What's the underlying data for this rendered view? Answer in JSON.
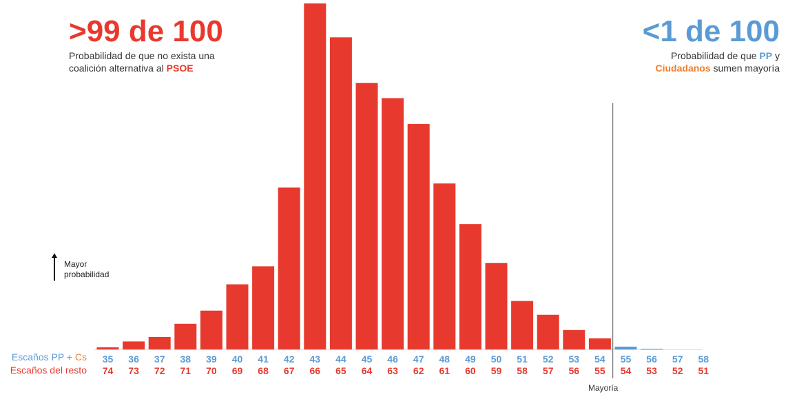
{
  "headline_left": {
    "value": ">99 de 100",
    "line1": "Probabilidad de que no exista una",
    "line2_prefix": "coalición alternativa al ",
    "line2_party": "PSOE"
  },
  "headline_right": {
    "value": "<1 de 100",
    "line1_prefix": "Probabilidad de que ",
    "line1_party": "PP",
    "line1_suffix": " y",
    "line2_party": "Ciudadanos",
    "line2_suffix": " sumen mayoría"
  },
  "row_labels": {
    "pp_prefix": "Escaños PP + ",
    "pp_suffix": "Cs",
    "rest": "Escaños del resto"
  },
  "probability_note": {
    "line1": "Mayor",
    "line2": "probabilidad"
  },
  "majority_label": "Mayoría",
  "colors": {
    "red": "#e8392e",
    "blue": "#5b9bd5",
    "orange": "#f07d2a"
  },
  "chart_data": {
    "type": "bar",
    "categories": [
      "35",
      "36",
      "37",
      "38",
      "39",
      "40",
      "41",
      "42",
      "43",
      "44",
      "45",
      "46",
      "47",
      "48",
      "49",
      "50",
      "51",
      "52",
      "53",
      "54",
      "55",
      "56",
      "57",
      "58"
    ],
    "secondary_categories": [
      "74",
      "73",
      "72",
      "71",
      "70",
      "69",
      "68",
      "67",
      "66",
      "65",
      "64",
      "63",
      "62",
      "61",
      "60",
      "59",
      "58",
      "57",
      "56",
      "55",
      "54",
      "53",
      "52",
      "51"
    ],
    "values": [
      0.6,
      2.3,
      3.6,
      7.4,
      11.2,
      18.8,
      24.0,
      46.8,
      100.0,
      90.2,
      77.0,
      72.6,
      65.2,
      48.0,
      36.2,
      25.0,
      14.0,
      10.0,
      5.6,
      3.2,
      0.8,
      0.2,
      0,
      0
    ],
    "majority_threshold": 55,
    "ylim": [
      0,
      100
    ],
    "grid": false,
    "title": "",
    "xlabel": "",
    "ylabel": ""
  }
}
